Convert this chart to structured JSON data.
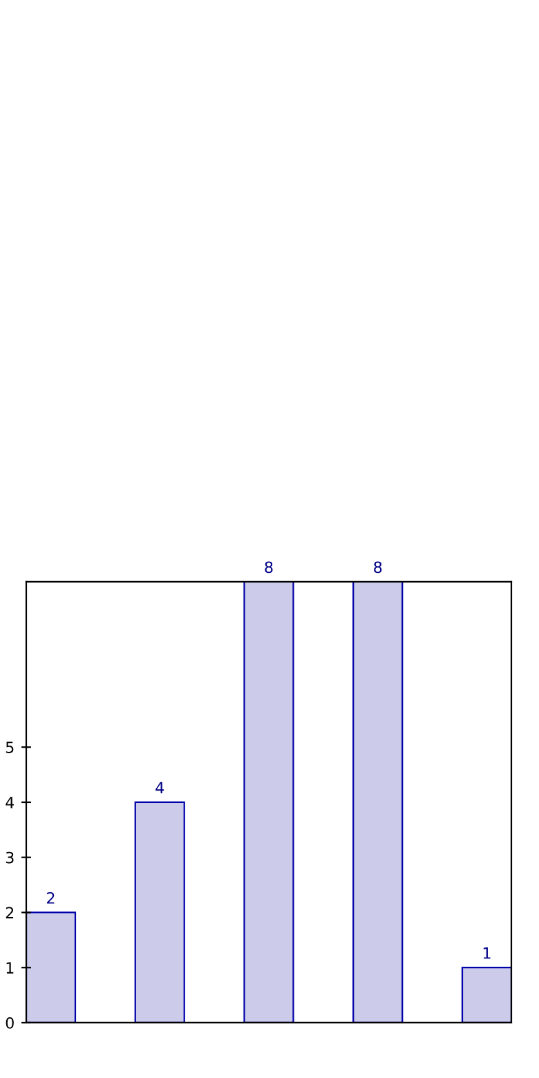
{
  "chart_data": {
    "type": "bar",
    "categories": [
      null,
      null,
      null,
      null,
      null
    ],
    "values": [
      2,
      4,
      8,
      8,
      1
    ],
    "color": "#ccccea",
    "ylim": [
      0,
      8
    ],
    "yticks": [
      0,
      1,
      2,
      3,
      4,
      5
    ],
    "data_labels": true,
    "grid": false,
    "legend": false
  }
}
